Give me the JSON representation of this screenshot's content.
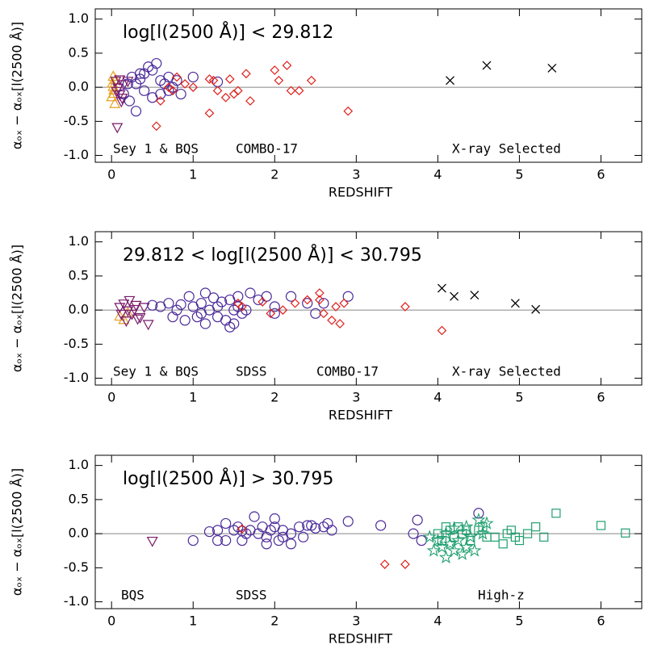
{
  "chart_data": [
    {
      "type": "scatter",
      "title": "log[l(2500 Å)] < 29.812",
      "xlabel": "REDSHIFT",
      "ylabel": "αₒₓ − αₒₓ[l(2500 Å)]",
      "xlim": [
        -0.2,
        6.5
      ],
      "ylim": [
        -1.1,
        1.15
      ],
      "xticks": [
        0,
        1,
        2,
        3,
        4,
        5,
        6
      ],
      "yticks": [
        {
          "value": 1,
          "label": "1.0"
        },
        0.5,
        {
          "value": 0,
          "label": "0.0"
        },
        -0.5,
        {
          "value": -1,
          "label": "-1.0"
        }
      ],
      "reference_line": 0,
      "annotations": [
        "Sey 1 & BQS",
        "COMBO-17",
        "X-ray Selected"
      ],
      "series": [
        {
          "marker": "triangle-up",
          "color": "#e8a020",
          "x": [
            0.02,
            0.01,
            0.03,
            0.0,
            0.04,
            0.02,
            0.05,
            0.03
          ],
          "y": [
            0.15,
            0.05,
            -0.05,
            -0.15,
            -0.25,
            0.0,
            0.1,
            -0.1
          ]
        },
        {
          "marker": "triangle-down",
          "color": "#7a1a6a",
          "x": [
            0.05,
            0.08,
            0.1,
            0.12,
            0.07,
            0.15,
            0.1,
            0.06,
            0.2,
            0.13
          ],
          "y": [
            0.1,
            0.0,
            -0.1,
            -0.2,
            -0.58,
            0.05,
            0.12,
            -0.05,
            0.1,
            -0.15
          ]
        },
        {
          "marker": "circle",
          "color": "#4b2a9a",
          "x": [
            0.15,
            0.2,
            0.25,
            0.3,
            0.35,
            0.4,
            0.45,
            0.5,
            0.55,
            0.6,
            0.65,
            0.5,
            0.4,
            0.7,
            0.75,
            0.8,
            1.0,
            1.3,
            0.3,
            0.22,
            0.6,
            0.7,
            0.35,
            0.85
          ],
          "y": [
            -0.1,
            0.05,
            0.15,
            -0.35,
            0.12,
            0.2,
            0.3,
            0.25,
            0.35,
            0.1,
            0.05,
            -0.15,
            -0.05,
            0.15,
            0.0,
            0.1,
            0.15,
            0.08,
            0.05,
            -0.2,
            -0.1,
            -0.05,
            0.2,
            -0.1
          ]
        },
        {
          "marker": "diamond",
          "color": "#e0201a",
          "x": [
            0.55,
            0.6,
            0.7,
            0.8,
            0.9,
            1.0,
            1.2,
            1.25,
            1.2,
            1.3,
            1.4,
            1.45,
            1.5,
            1.65,
            1.7,
            2.0,
            2.05,
            2.15,
            2.2,
            2.3,
            2.45,
            2.9,
            1.55,
            0.75
          ],
          "y": [
            -0.57,
            -0.2,
            0.0,
            0.15,
            0.05,
            0.0,
            0.12,
            0.1,
            -0.38,
            -0.05,
            -0.15,
            0.12,
            -0.1,
            0.2,
            -0.2,
            0.25,
            0.1,
            0.32,
            -0.05,
            -0.05,
            0.1,
            -0.35,
            -0.05,
            -0.05
          ]
        },
        {
          "marker": "cross",
          "color": "#000000",
          "x": [
            4.15,
            4.6,
            5.4
          ],
          "y": [
            0.1,
            0.32,
            0.28
          ]
        }
      ]
    },
    {
      "type": "scatter",
      "title": "29.812 < log[l(2500 Å)] < 30.795",
      "xlabel": "REDSHIFT",
      "ylabel": "αₒₓ − αₒₓ[l(2500 Å)]",
      "xlim": [
        -0.2,
        6.5
      ],
      "ylim": [
        -1.1,
        1.15
      ],
      "xticks": [
        0,
        1,
        2,
        3,
        4,
        5,
        6
      ],
      "yticks": [
        {
          "value": 1,
          "label": "1.0"
        },
        0.5,
        {
          "value": 0,
          "label": "0.0"
        },
        -0.5,
        {
          "value": -1,
          "label": "-1.0"
        }
      ],
      "reference_line": 0,
      "annotations": [
        "Sey 1 & BQS",
        "SDSS",
        "COMBO-17",
        "X-ray Selected"
      ],
      "series": [
        {
          "marker": "triangle-up",
          "color": "#e8a020",
          "x": [
            0.15,
            0.2,
            0.1
          ],
          "y": [
            -0.15,
            -0.05,
            -0.1
          ]
        },
        {
          "marker": "triangle-down",
          "color": "#7a1a6a",
          "x": [
            0.1,
            0.15,
            0.2,
            0.25,
            0.3,
            0.18,
            0.22,
            0.35,
            0.4,
            0.45,
            0.12,
            0.28,
            0.32
          ],
          "y": [
            0.05,
            0.1,
            0.0,
            -0.05,
            0.08,
            -0.15,
            0.15,
            -0.1,
            0.05,
            -0.2,
            -0.05,
            0.02,
            -0.12
          ]
        },
        {
          "marker": "circle",
          "color": "#4b2a9a",
          "x": [
            0.5,
            0.6,
            0.7,
            0.75,
            0.8,
            0.85,
            0.9,
            0.95,
            1.0,
            1.05,
            1.1,
            1.15,
            1.2,
            1.25,
            1.3,
            1.3,
            1.35,
            1.4,
            1.45,
            1.5,
            1.5,
            1.55,
            1.6,
            1.7,
            1.8,
            1.9,
            2.0,
            2.2,
            2.4,
            2.6,
            2.9,
            2.0,
            1.1,
            1.15,
            1.45,
            1.55,
            2.5,
            1.65
          ],
          "y": [
            0.07,
            0.05,
            0.1,
            -0.1,
            0.0,
            0.08,
            -0.15,
            0.2,
            0.05,
            -0.1,
            0.1,
            -0.2,
            0.0,
            0.18,
            0.05,
            -0.1,
            0.12,
            -0.15,
            0.15,
            -0.2,
            0.0,
            0.2,
            -0.05,
            0.25,
            0.15,
            0.2,
            0.05,
            0.2,
            0.1,
            0.1,
            0.2,
            -0.05,
            -0.05,
            0.25,
            -0.25,
            0.05,
            -0.05,
            0.0
          ]
        },
        {
          "marker": "diamond",
          "color": "#e0201a",
          "x": [
            1.6,
            1.55,
            1.85,
            2.1,
            2.25,
            2.55,
            2.55,
            2.6,
            2.7,
            2.75,
            2.8,
            2.85,
            3.6,
            4.05,
            2.4,
            1.95
          ],
          "y": [
            0.05,
            0.1,
            0.12,
            0.0,
            0.1,
            0.25,
            0.15,
            -0.05,
            -0.15,
            0.05,
            -0.2,
            0.1,
            0.05,
            -0.3,
            0.15,
            -0.05
          ]
        },
        {
          "marker": "cross",
          "color": "#000000",
          "x": [
            4.05,
            4.2,
            4.45,
            4.95,
            5.2
          ],
          "y": [
            0.32,
            0.2,
            0.22,
            0.1,
            0.01
          ]
        }
      ]
    },
    {
      "type": "scatter",
      "title": "log[l(2500 Å)] > 30.795",
      "xlabel": "REDSHIFT",
      "ylabel": "αₒₓ − αₒₓ[l(2500 Å)]",
      "xlim": [
        -0.2,
        6.5
      ],
      "ylim": [
        -1.1,
        1.15
      ],
      "xticks": [
        0,
        1,
        2,
        3,
        4,
        5,
        6
      ],
      "yticks": [
        {
          "value": 1,
          "label": "1.0"
        },
        0.5,
        {
          "value": 0,
          "label": "0.0"
        },
        -0.5,
        {
          "value": -1,
          "label": "-1.0"
        }
      ],
      "reference_line": 0,
      "annotations": [
        "BQS",
        "SDSS",
        "High-z"
      ],
      "series": [
        {
          "marker": "triangle-down",
          "color": "#7a1a6a",
          "x": [
            0.5
          ],
          "y": [
            -0.1
          ]
        },
        {
          "marker": "circle",
          "color": "#4b2a9a",
          "x": [
            1.0,
            1.2,
            1.3,
            1.4,
            1.4,
            1.5,
            1.55,
            1.6,
            1.65,
            1.7,
            1.8,
            1.85,
            1.9,
            1.95,
            2.0,
            2.05,
            2.1,
            2.2,
            2.3,
            2.35,
            2.4,
            2.5,
            2.6,
            2.7,
            2.9,
            3.3,
            3.7,
            3.8,
            2.0,
            1.75,
            1.3,
            2.2,
            1.9,
            2.45,
            2.65,
            4.5,
            3.75,
            1.6,
            2.1
          ],
          "y": [
            -0.1,
            0.03,
            0.05,
            0.15,
            -0.1,
            0.05,
            0.1,
            -0.1,
            0.0,
            0.05,
            0.0,
            0.1,
            -0.05,
            0.05,
            0.1,
            -0.1,
            0.05,
            0.0,
            0.1,
            -0.05,
            0.12,
            0.08,
            0.1,
            0.05,
            0.18,
            0.12,
            0.0,
            -0.1,
            0.22,
            0.25,
            -0.1,
            -0.15,
            -0.15,
            0.12,
            0.15,
            0.3,
            0.2,
            0.04,
            -0.05
          ]
        },
        {
          "marker": "diamond",
          "color": "#e0201a",
          "x": [
            1.6,
            3.35,
            3.6
          ],
          "y": [
            0.07,
            -0.45,
            -0.45
          ]
        },
        {
          "marker": "square",
          "color": "#20a070",
          "x": [
            4.0,
            4.1,
            4.15,
            4.2,
            4.25,
            4.3,
            4.35,
            4.4,
            4.5,
            4.6,
            4.7,
            4.8,
            4.85,
            4.9,
            5.0,
            5.1,
            5.2,
            5.3,
            5.45,
            6.0,
            6.3,
            4.95,
            4.55,
            4.05
          ],
          "y": [
            0.0,
            0.1,
            0.05,
            -0.05,
            0.1,
            0.0,
            0.05,
            -0.1,
            0.05,
            -0.05,
            -0.05,
            -0.15,
            0.0,
            0.05,
            -0.1,
            0.0,
            0.1,
            -0.05,
            0.3,
            0.12,
            0.01,
            -0.05,
            0.1,
            -0.1
          ]
        },
        {
          "marker": "star",
          "color": "#20a070",
          "x": [
            3.95,
            4.0,
            4.05,
            4.1,
            4.15,
            4.2,
            4.25,
            4.3,
            4.35,
            4.4,
            4.45,
            4.5,
            4.55,
            4.2,
            4.35,
            4.6,
            3.9,
            4.1
          ],
          "y": [
            -0.25,
            -0.1,
            -0.2,
            0.0,
            -0.15,
            -0.25,
            -0.1,
            -0.3,
            -0.2,
            -0.05,
            -0.25,
            0.2,
            0.0,
            0.08,
            0.1,
            0.15,
            -0.05,
            -0.35
          ]
        }
      ]
    }
  ]
}
